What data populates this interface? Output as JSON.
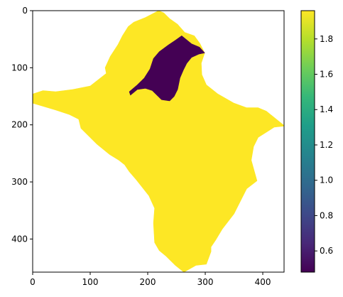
{
  "chart_data": {
    "type": "heatmap",
    "x_ticks": [
      0,
      100,
      200,
      300,
      400
    ],
    "y_ticks": [
      0,
      100,
      200,
      300,
      400
    ],
    "xlim": [
      0,
      437
    ],
    "ylim": [
      458,
      0
    ],
    "y_axis_inverted": true,
    "grid": false,
    "regions": [
      {
        "id": "outer-region",
        "value": 1.96,
        "color": "#fde725",
        "outline": [
          [
            219,
            0
          ],
          [
            228,
            4
          ],
          [
            238,
            14
          ],
          [
            252,
            24
          ],
          [
            264,
            38
          ],
          [
            281,
            44
          ],
          [
            291,
            58
          ],
          [
            299,
            74
          ],
          [
            293,
            92
          ],
          [
            294,
            112
          ],
          [
            302,
            130
          ],
          [
            322,
            146
          ],
          [
            350,
            162
          ],
          [
            372,
            170
          ],
          [
            392,
            170
          ],
          [
            406,
            176
          ],
          [
            438,
            202
          ],
          [
            420,
            204
          ],
          [
            392,
            222
          ],
          [
            384,
            238
          ],
          [
            380,
            262
          ],
          [
            390,
            298
          ],
          [
            372,
            312
          ],
          [
            362,
            332
          ],
          [
            350,
            356
          ],
          [
            330,
            382
          ],
          [
            318,
            402
          ],
          [
            310,
            414
          ],
          [
            310,
            422
          ],
          [
            302,
            444
          ],
          [
            284,
            446
          ],
          [
            263,
            458
          ],
          [
            248,
            446
          ],
          [
            232,
            430
          ],
          [
            220,
            420
          ],
          [
            212,
            406
          ],
          [
            210,
            372
          ],
          [
            212,
            346
          ],
          [
            202,
            324
          ],
          [
            180,
            296
          ],
          [
            168,
            282
          ],
          [
            160,
            270
          ],
          [
            150,
            262
          ],
          [
            134,
            252
          ],
          [
            112,
            234
          ],
          [
            100,
            222
          ],
          [
            84,
            206
          ],
          [
            80,
            190
          ],
          [
            64,
            182
          ],
          [
            40,
            174
          ],
          [
            0,
            162
          ],
          [
            0,
            146
          ],
          [
            18,
            140
          ],
          [
            40,
            142
          ],
          [
            70,
            138
          ],
          [
            100,
            132
          ],
          [
            128,
            110
          ],
          [
            126,
            100
          ],
          [
            135,
            80
          ],
          [
            148,
            60
          ],
          [
            156,
            44
          ],
          [
            166,
            28
          ],
          [
            176,
            20
          ],
          [
            196,
            12
          ]
        ]
      },
      {
        "id": "inner-region",
        "value": 0.48,
        "color": "#440154",
        "outline": [
          [
            259,
            44
          ],
          [
            276,
            58
          ],
          [
            290,
            64
          ],
          [
            299,
            74
          ],
          [
            289,
            76
          ],
          [
            276,
            82
          ],
          [
            268,
            92
          ],
          [
            262,
            104
          ],
          [
            256,
            118
          ],
          [
            252,
            138
          ],
          [
            246,
            150
          ],
          [
            238,
            158
          ],
          [
            224,
            156
          ],
          [
            216,
            148
          ],
          [
            208,
            140
          ],
          [
            196,
            136
          ],
          [
            182,
            138
          ],
          [
            170,
            148
          ],
          [
            168,
            142
          ],
          [
            182,
            130
          ],
          [
            194,
            118
          ],
          [
            204,
            102
          ],
          [
            210,
            84
          ],
          [
            220,
            72
          ],
          [
            236,
            60
          ],
          [
            248,
            52
          ]
        ]
      }
    ],
    "colorbar": {
      "min": 0.48,
      "max": 1.96,
      "ticks": [
        0.6,
        0.8,
        1.0,
        1.2,
        1.4,
        1.6,
        1.8
      ],
      "tick_labels": [
        "0.6",
        "0.8",
        "1.0",
        "1.2",
        "1.4",
        "1.6",
        "1.8"
      ],
      "colormap": "viridis",
      "stops": [
        "#440154",
        "#482878",
        "#3e4989",
        "#31688e",
        "#26828e",
        "#1f9e89",
        "#35b779",
        "#6ece58",
        "#b5de2b",
        "#fde725"
      ]
    }
  }
}
